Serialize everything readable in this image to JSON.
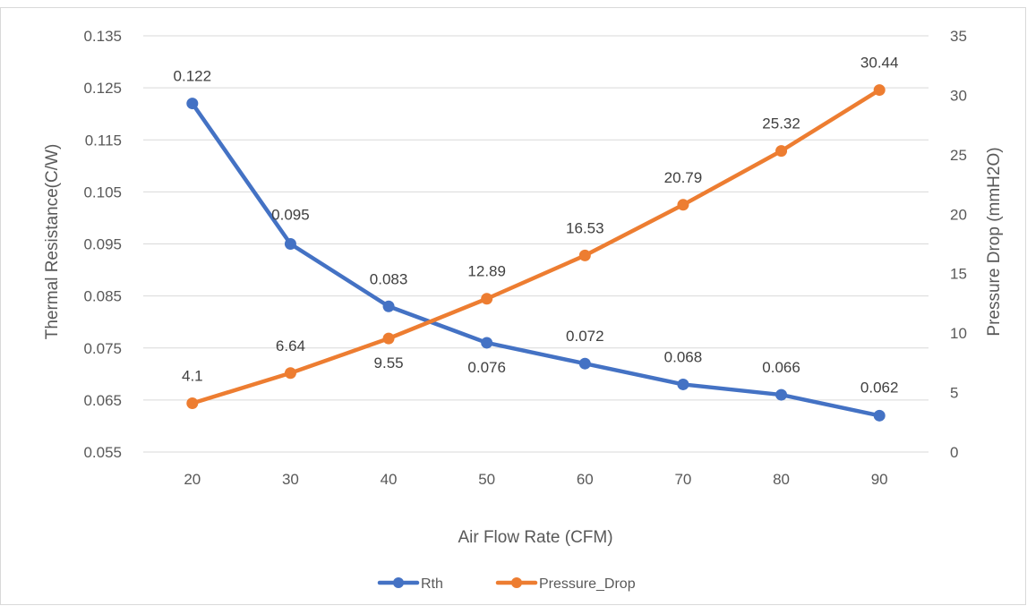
{
  "chart_data": {
    "type": "line",
    "title": "",
    "xlabel": "Air Flow Rate (CFM)",
    "ylabel_left": "Thermal Resistance(C/W)",
    "ylabel_right": "Pressure Drop (mmH2O)",
    "x": [
      20,
      30,
      40,
      50,
      60,
      70,
      80,
      90
    ],
    "ylim_left": [
      0.055,
      0.135
    ],
    "yticks_left": [
      "0.055",
      "0.065",
      "0.075",
      "0.085",
      "0.095",
      "0.105",
      "0.115",
      "0.125",
      "0.135"
    ],
    "ylim_right": [
      0,
      35
    ],
    "yticks_right": [
      "0",
      "5",
      "10",
      "15",
      "20",
      "25",
      "30",
      "35"
    ],
    "grid": true,
    "legend_position": "bottom",
    "series": [
      {
        "name": "Rth",
        "axis": "left",
        "color": "#4472C4",
        "values": [
          0.122,
          0.095,
          0.083,
          0.076,
          0.072,
          0.068,
          0.066,
          0.062
        ],
        "labels": [
          "0.122",
          "0.095",
          "0.083",
          "0.076",
          "0.072",
          "0.068",
          "0.066",
          "0.062"
        ]
      },
      {
        "name": "Pressure_Drop",
        "axis": "right",
        "color": "#ED7D31",
        "values": [
          4.1,
          6.64,
          9.55,
          12.89,
          16.53,
          20.79,
          25.32,
          30.44
        ],
        "labels": [
          "4.1",
          "6.64",
          "9.55",
          "12.89",
          "16.53",
          "20.79",
          "25.32",
          "30.44"
        ]
      }
    ]
  }
}
